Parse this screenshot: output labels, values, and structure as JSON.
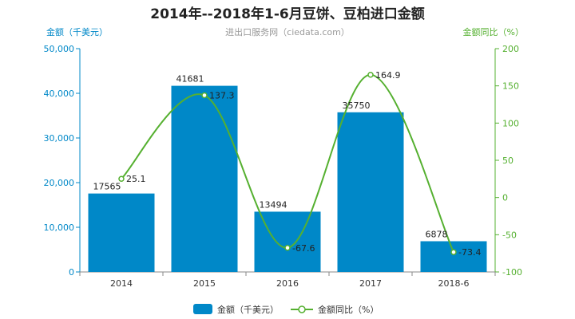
{
  "chart_data": {
    "type": "bar",
    "title": "2014年--2018年1-6月豆饼、豆柏进口金额",
    "subtitle": "进出口服务网（ciedata.com）",
    "categories": [
      "2014",
      "2015",
      "2016",
      "2017",
      "2018-6"
    ],
    "series": [
      {
        "name": "金额（千美元）",
        "type": "bar",
        "axis": "left",
        "values": [
          17565,
          41681,
          13494,
          35750,
          6878
        ],
        "color": "#0088c8"
      },
      {
        "name": "金额同比（%）",
        "type": "line",
        "axis": "right",
        "values": [
          25.1,
          137.3,
          -67.6,
          164.9,
          -73.4
        ],
        "color": "#55b030"
      }
    ],
    "ylabel": "金额（千美元）",
    "ylabel_right": "金额同比（%）",
    "ylim": [
      0,
      50000
    ],
    "ylim_right": [
      -100,
      200
    ],
    "yticks": [
      "0",
      "10,000",
      "20,000",
      "30,000",
      "40,000",
      "50,000"
    ],
    "yticks_right": [
      "-100",
      "-50",
      "0",
      "50",
      "100",
      "150",
      "200"
    ],
    "grid": false,
    "legend_position": "bottom-center"
  }
}
